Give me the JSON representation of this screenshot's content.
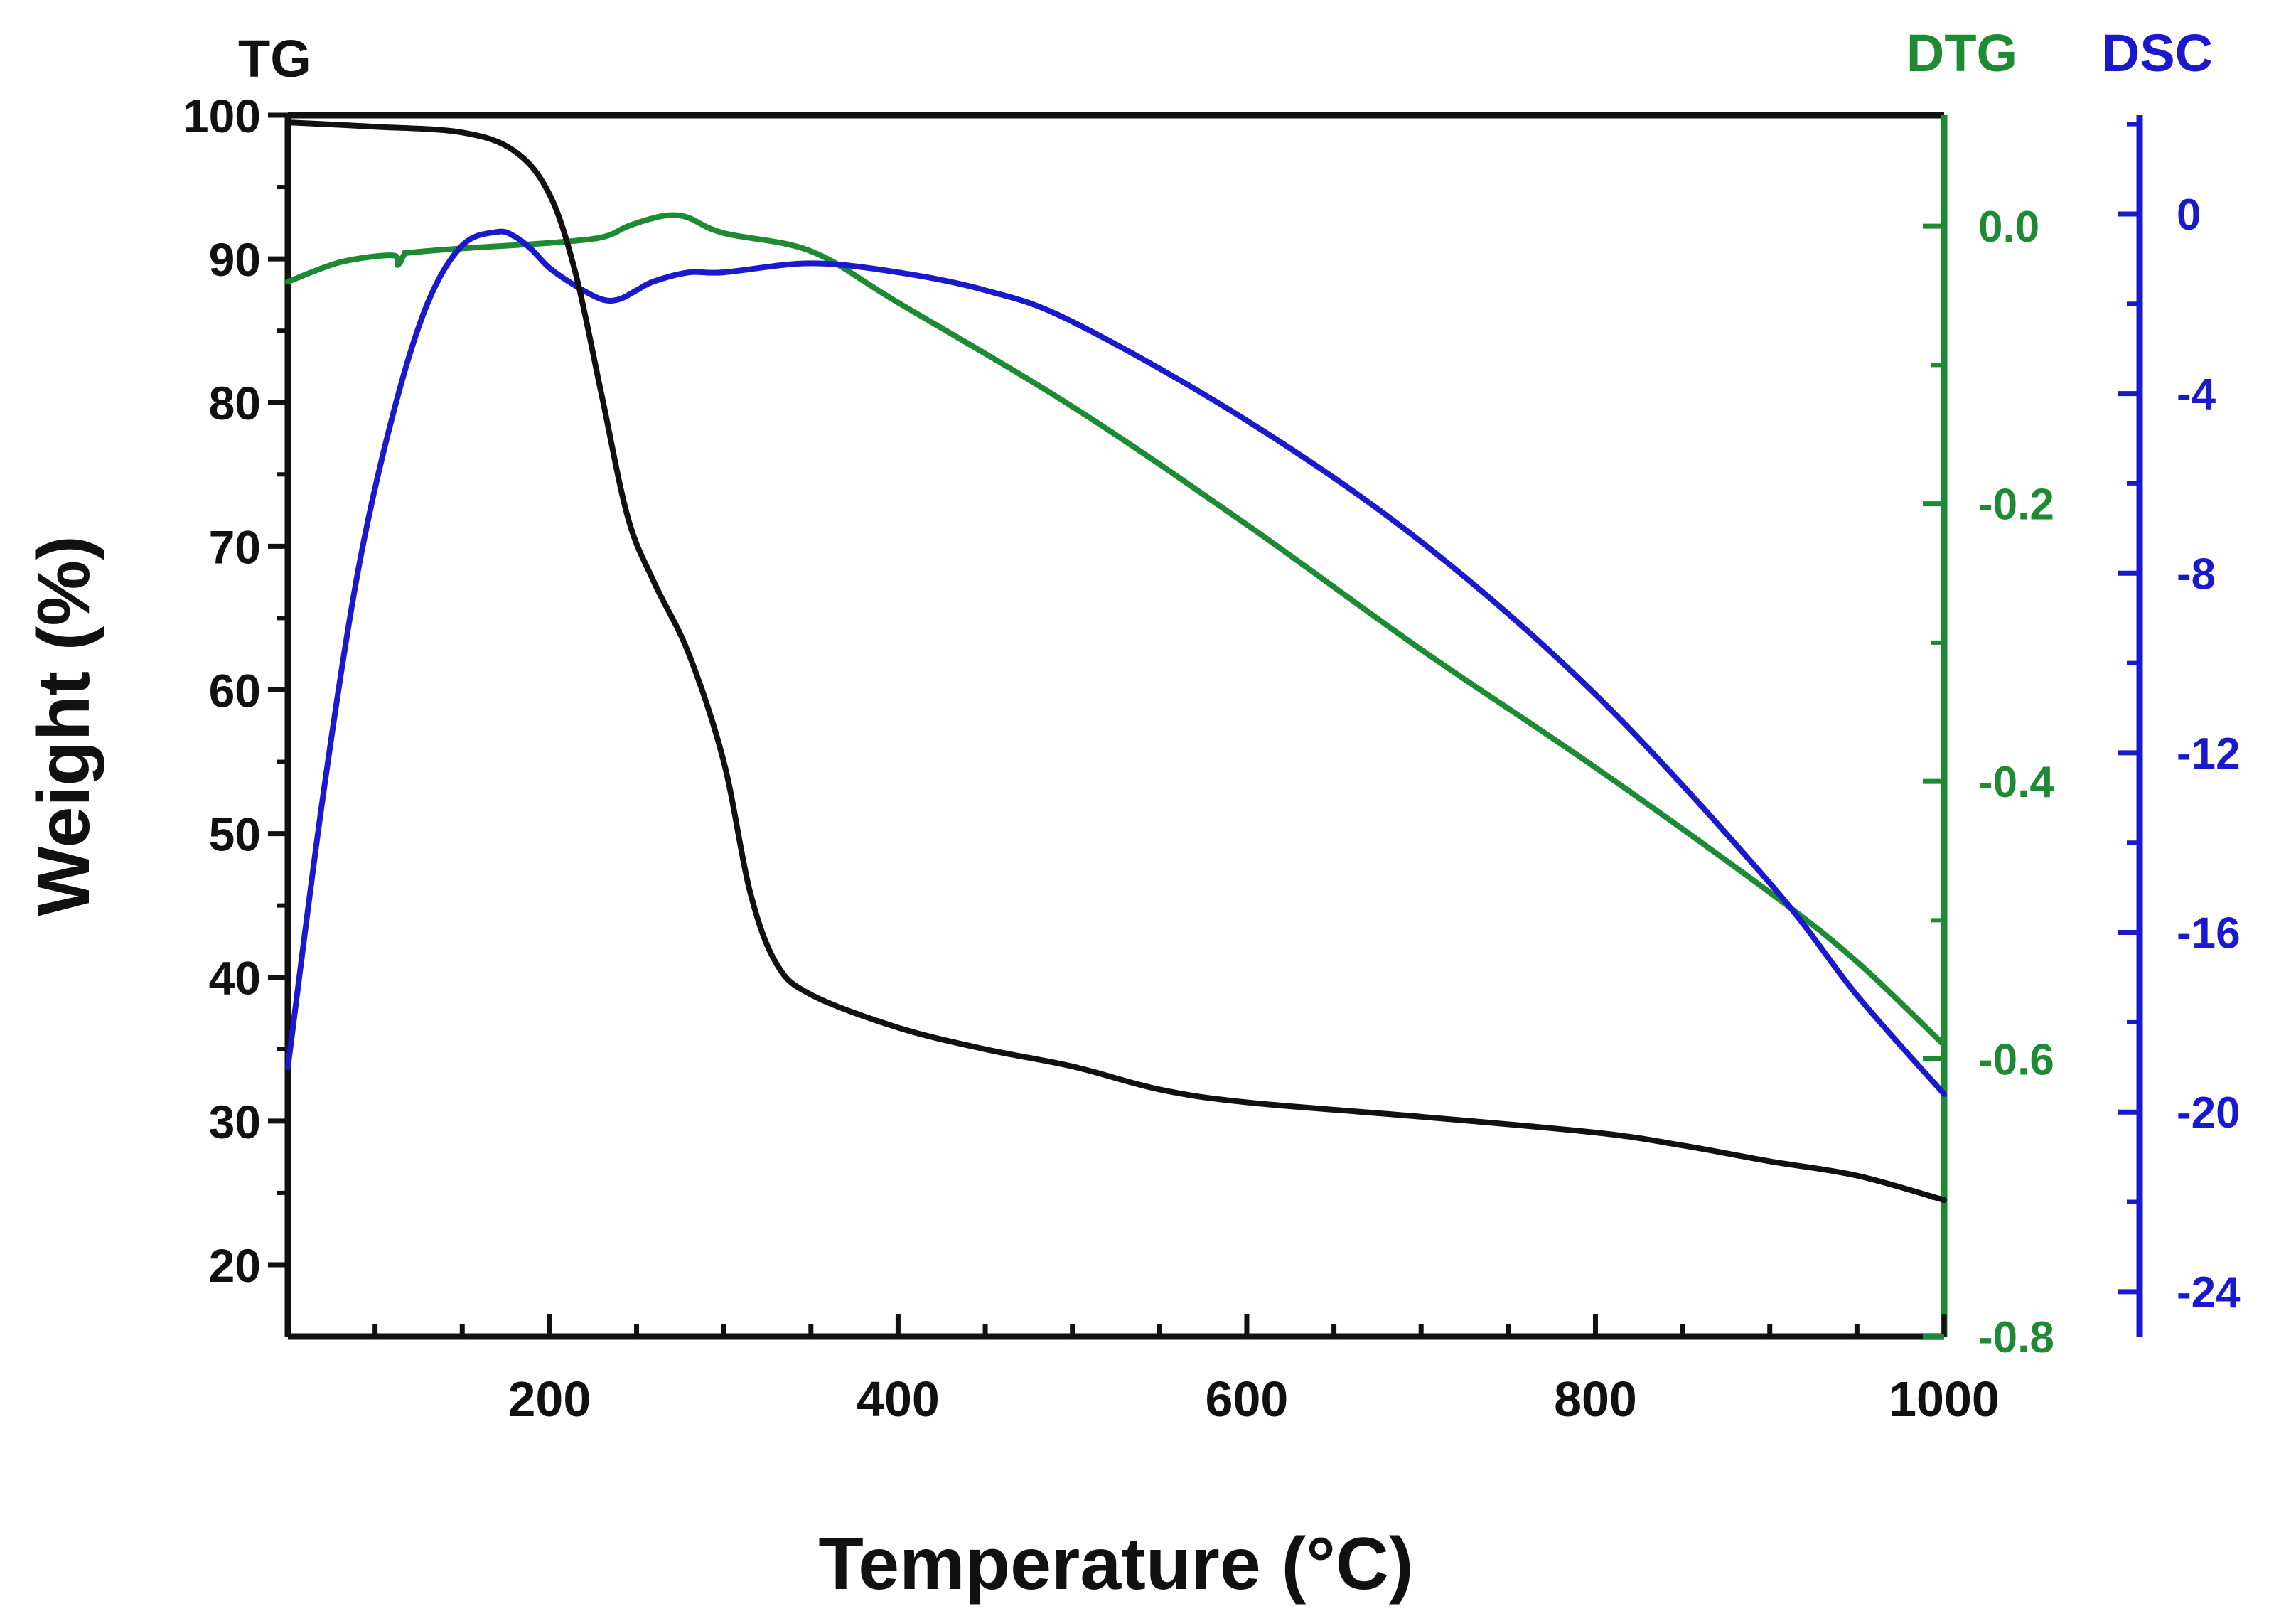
{
  "chart_data": {
    "type": "line",
    "xlabel": "Temperature (°C)",
    "xlim": [
      50,
      1000
    ],
    "x_ticks": [
      200,
      400,
      600,
      800,
      1000
    ],
    "axes": {
      "left": {
        "label": "Weight (%)",
        "corner_label": "TG",
        "range": [
          15,
          100
        ],
        "ticks": [
          20,
          30,
          40,
          50,
          60,
          70,
          80,
          90,
          100
        ],
        "color": "#111111"
      },
      "dtg": {
        "corner_label": "DTG",
        "range": [
          -0.8,
          0.08
        ],
        "ticks": [
          "0.0",
          "-0.2",
          "-0.4",
          "-0.6",
          "-0.8"
        ],
        "tick_values": [
          0.0,
          -0.2,
          -0.4,
          -0.6,
          -0.8
        ],
        "color": "#1e8a34"
      },
      "dsc": {
        "corner_label": "DSC",
        "range": [
          -25,
          2.2
        ],
        "ticks": [
          "0",
          "-4",
          "-8",
          "-12",
          "-16",
          "-20",
          "-24"
        ],
        "tick_values": [
          0,
          -4,
          -8,
          -12,
          -16,
          -20,
          -24
        ],
        "color": "#1a1acc"
      }
    },
    "series": [
      {
        "name": "TG",
        "axis": "left",
        "color": "#111111",
        "x": [
          50,
          100,
          150,
          180,
          200,
          215,
          230,
          245,
          260,
          280,
          300,
          315,
          330,
          350,
          400,
          450,
          500,
          550,
          600,
          700,
          800,
          850,
          900,
          950,
          1000
        ],
        "y": [
          99.5,
          99.2,
          98.8,
          97.5,
          94.5,
          89.0,
          80.5,
          72.0,
          67.5,
          62.5,
          55.0,
          46.0,
          41.0,
          38.8,
          36.5,
          35.0,
          33.8,
          32.2,
          31.3,
          30.3,
          29.2,
          28.3,
          27.2,
          26.2,
          24.5
        ]
      },
      {
        "name": "DTG",
        "axis": "dtg",
        "color": "#1e8a34",
        "x": [
          50,
          80,
          110,
          113,
          117,
          120,
          150,
          200,
          230,
          245,
          260,
          270,
          280,
          300,
          350,
          400,
          500,
          600,
          700,
          800,
          900,
          950,
          1000
        ],
        "y": [
          -0.04,
          -0.026,
          -0.021,
          -0.028,
          -0.02,
          -0.019,
          -0.016,
          -0.012,
          -0.008,
          0.0,
          0.006,
          0.008,
          0.006,
          -0.005,
          -0.018,
          -0.055,
          -0.13,
          -0.215,
          -0.305,
          -0.39,
          -0.48,
          -0.53,
          -0.59
        ]
      },
      {
        "name": "DSC",
        "axis": "dsc",
        "color": "#1a1acc",
        "x": [
          50,
          70,
          90,
          110,
          130,
          150,
          170,
          180,
          190,
          200,
          215,
          230,
          240,
          250,
          260,
          280,
          300,
          350,
          400,
          450,
          500,
          600,
          700,
          800,
          900,
          950,
          1000
        ],
        "y": [
          -19.0,
          -13.0,
          -8.0,
          -4.5,
          -2.0,
          -0.7,
          -0.4,
          -0.5,
          -0.8,
          -1.2,
          -1.6,
          -1.9,
          -1.9,
          -1.7,
          -1.5,
          -1.3,
          -1.3,
          -1.1,
          -1.3,
          -1.7,
          -2.4,
          -4.6,
          -7.3,
          -10.7,
          -14.9,
          -17.4,
          -19.6
        ]
      }
    ]
  }
}
